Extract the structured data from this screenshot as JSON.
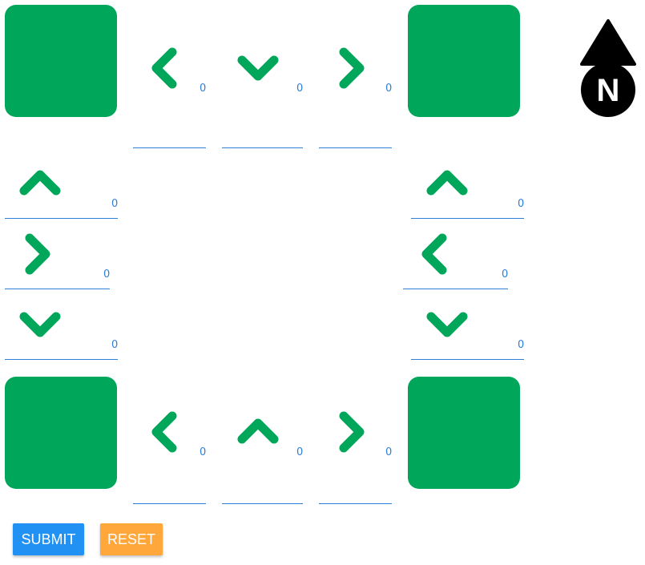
{
  "colors": {
    "block": "#00a65a",
    "arrow": "#00a65a",
    "count": "#2f7fd6",
    "underline": "#2f7fd6",
    "compass": "#000000",
    "submit": "#2191f3",
    "reset": "#ffa73b"
  },
  "compass": {
    "letter": "N",
    "icon": "north-arrow-icon"
  },
  "blocks": [
    {
      "name": "block-top-left"
    },
    {
      "name": "block-top-right"
    },
    {
      "name": "block-bottom-left"
    },
    {
      "name": "block-bottom-right"
    }
  ],
  "lanes": [
    {
      "name": "lane-top-left",
      "direction": "left",
      "count": "0"
    },
    {
      "name": "lane-top-down",
      "direction": "down",
      "count": "0"
    },
    {
      "name": "lane-top-right",
      "direction": "right",
      "count": "0"
    },
    {
      "name": "lane-left-up",
      "direction": "up",
      "count": "0"
    },
    {
      "name": "lane-left-right",
      "direction": "right",
      "count": "0"
    },
    {
      "name": "lane-left-down",
      "direction": "down",
      "count": "0"
    },
    {
      "name": "lane-right-up",
      "direction": "up",
      "count": "0"
    },
    {
      "name": "lane-right-left",
      "direction": "left",
      "count": "0"
    },
    {
      "name": "lane-right-down",
      "direction": "down",
      "count": "0"
    },
    {
      "name": "lane-bottom-left",
      "direction": "left",
      "count": "0"
    },
    {
      "name": "lane-bottom-up",
      "direction": "up",
      "count": "0"
    },
    {
      "name": "lane-bottom-right",
      "direction": "right",
      "count": "0"
    }
  ],
  "buttons": {
    "submit_label": "SUBMIT",
    "reset_label": "RESET"
  }
}
